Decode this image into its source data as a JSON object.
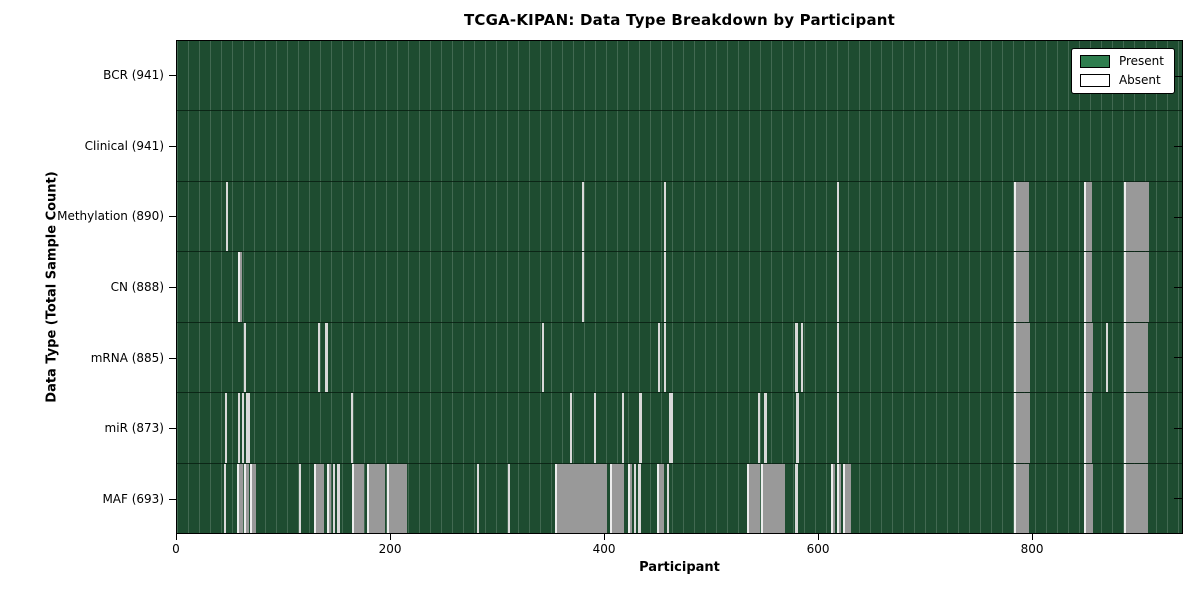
{
  "chart_data": {
    "type": "heatmap",
    "title": "TCGA-KIPAN: Data Type Breakdown by Participant",
    "xlabel": "Participant",
    "ylabel": "Data Type (Total Sample Count)",
    "x_max": 941,
    "x_ticks": [
      0,
      200,
      400,
      600,
      800
    ],
    "grid": false,
    "legend_position": "upper right",
    "legend": [
      {
        "label": "Present",
        "color": "#2e7d4e"
      },
      {
        "label": "Absent",
        "color": "#ffffff"
      }
    ],
    "rows": [
      {
        "data_type": "BCR",
        "total": 941,
        "label": "BCR (941)",
        "absent_ranges": []
      },
      {
        "data_type": "Clinical",
        "total": 941,
        "label": "Clinical (941)",
        "absent_ranges": []
      },
      {
        "data_type": "Methylation",
        "total": 890,
        "label": "Methylation (890)",
        "absent_ranges": [
          [
            46,
            48
          ],
          [
            379,
            381
          ],
          [
            456,
            458
          ],
          [
            618,
            620
          ],
          [
            784,
            798
          ],
          [
            849,
            857
          ],
          [
            887,
            910
          ]
        ]
      },
      {
        "data_type": "CN",
        "total": 888,
        "label": "CN (888)",
        "absent_ranges": [
          [
            57,
            61
          ],
          [
            379,
            381
          ],
          [
            456,
            458
          ],
          [
            618,
            620
          ],
          [
            784,
            798
          ],
          [
            849,
            857
          ],
          [
            887,
            910
          ]
        ]
      },
      {
        "data_type": "mRNA",
        "total": 885,
        "label": "mRNA (885)",
        "absent_ranges": [
          [
            63,
            65
          ],
          [
            132,
            134
          ],
          [
            139,
            141
          ],
          [
            342,
            344
          ],
          [
            450,
            452
          ],
          [
            456,
            458
          ],
          [
            579,
            581
          ],
          [
            584,
            586
          ],
          [
            618,
            620
          ],
          [
            784,
            799
          ],
          [
            849,
            858
          ],
          [
            870,
            872
          ],
          [
            887,
            909
          ]
        ]
      },
      {
        "data_type": "miR",
        "total": 873,
        "label": "miR (873)",
        "absent_ranges": [
          [
            45,
            47
          ],
          [
            57,
            59
          ],
          [
            61,
            63
          ],
          [
            65,
            68
          ],
          [
            163,
            165
          ],
          [
            368,
            370
          ],
          [
            390,
            392
          ],
          [
            417,
            419
          ],
          [
            433,
            435
          ],
          [
            461,
            464
          ],
          [
            544,
            546
          ],
          [
            550,
            552
          ],
          [
            580,
            582
          ],
          [
            618,
            620
          ],
          [
            784,
            799
          ],
          [
            849,
            857
          ],
          [
            887,
            909
          ]
        ]
      },
      {
        "data_type": "MAF",
        "total": 693,
        "label": "MAF (693)",
        "absent_ranges": [
          [
            44,
            46
          ],
          [
            56,
            62
          ],
          [
            63,
            67
          ],
          [
            68,
            74
          ],
          [
            114,
            116
          ],
          [
            128,
            138
          ],
          [
            140,
            144
          ],
          [
            146,
            148
          ],
          [
            150,
            153
          ],
          [
            164,
            175
          ],
          [
            178,
            195
          ],
          [
            197,
            215
          ],
          [
            281,
            283
          ],
          [
            310,
            312
          ],
          [
            354,
            403
          ],
          [
            405,
            419
          ],
          [
            422,
            426
          ],
          [
            428,
            430
          ],
          [
            432,
            434
          ],
          [
            449,
            456
          ],
          [
            459,
            461
          ],
          [
            534,
            546
          ],
          [
            547,
            569
          ],
          [
            579,
            581
          ],
          [
            612,
            616
          ],
          [
            618,
            622
          ],
          [
            624,
            631
          ],
          [
            784,
            798
          ],
          [
            849,
            858
          ],
          [
            887,
            909
          ]
        ]
      }
    ],
    "colors": {
      "present": "#1e4c30",
      "present_gridline": "#3c7352",
      "absent_band": "#999999",
      "absent_thin": "#d9d9d9",
      "absent_edge": "#ededed",
      "row_separator": "#0d2a1a",
      "spine": "#000000",
      "background": "#ffffff"
    }
  }
}
